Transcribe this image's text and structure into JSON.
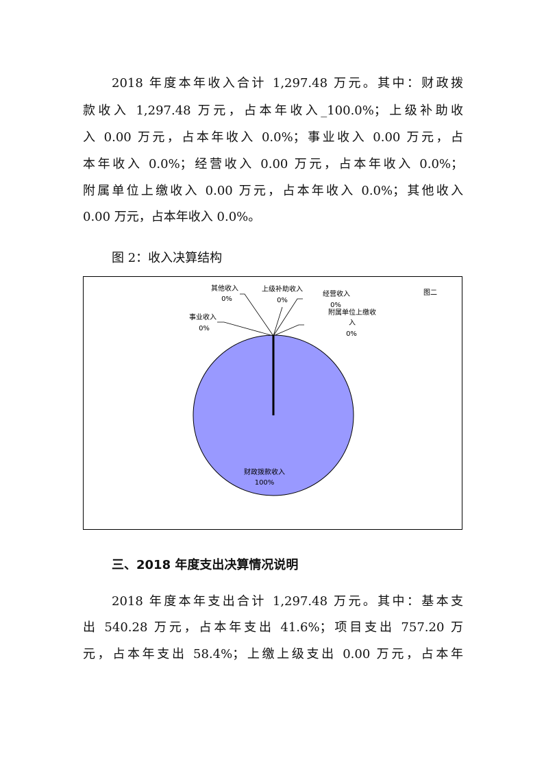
{
  "para1": [
    "2018 年度本年收入合计 1,297.48 万元。其中：财政拨",
    "款收入 1,297.48 万元，占本年收入_100.0%；上级补助收",
    "入 0.00 万元，占本年收入 0.0%；事业收入 0.00 万元，占",
    "本年收入 0.0%；经营收入 0.00 万元，占本年收入 0.0%；",
    "附属单位上缴收入 0.00 万元，占本年收入 0.0%；其他收入",
    "0.00 万元，占本年收入 0.0%。"
  ],
  "caption": "图 2：收入决算结构",
  "chart_data": {
    "type": "pie",
    "title": "图二",
    "slices": [
      {
        "name": "财政拨款收入",
        "value": 100,
        "label": "100%"
      },
      {
        "name": "事业收入",
        "value": 0,
        "label": "0%"
      },
      {
        "name": "其他收入",
        "value": 0,
        "label": "0%"
      },
      {
        "name": "上级补助收入",
        "value": 0,
        "label": "0%"
      },
      {
        "name": "经营收入",
        "value": 0,
        "label": "0%"
      },
      {
        "name": "附属单位上缴收入",
        "value": 0,
        "label": "0%"
      }
    ],
    "colors": {
      "fill": "#9999ff",
      "stroke": "#000000"
    }
  },
  "heading": "三、2018 年度支出决算情况说明",
  "para2": [
    "2018 年度本年支出合计 1,297.48 万元。其中：基本支",
    "出 540.28 万元，占本年支出 41.6%；项目支出 757.20 万",
    "元，占本年支出 58.4%；上缴上级支出 0.00 万元，占本年"
  ]
}
